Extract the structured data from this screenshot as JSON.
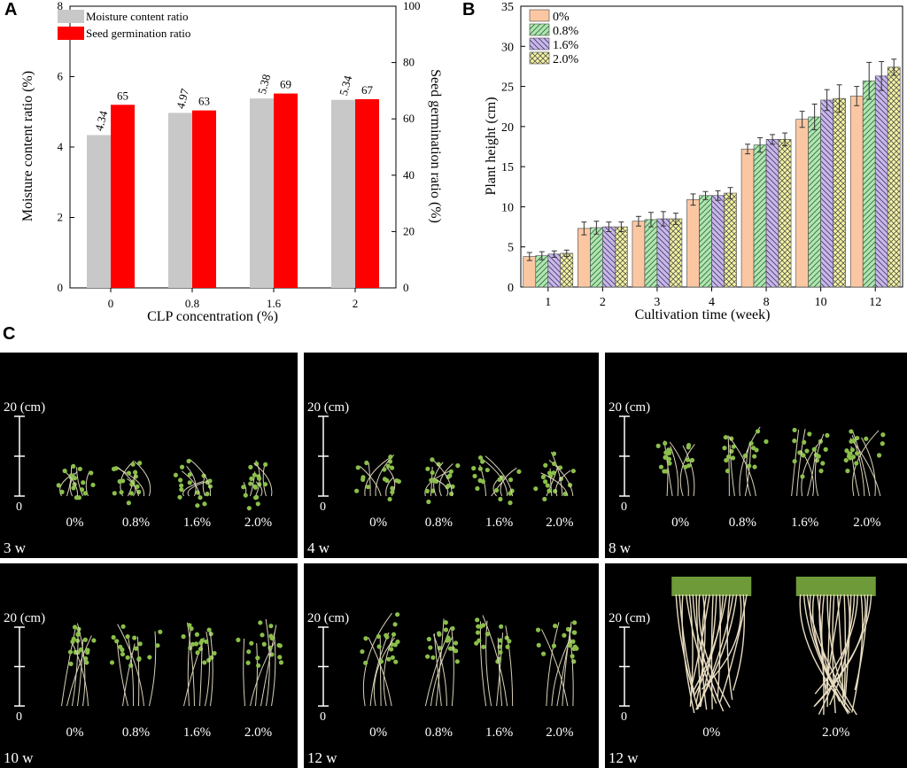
{
  "panels": {
    "a": "A",
    "b": "B",
    "c": "C"
  },
  "chart_data": [
    {
      "type": "bar",
      "title": "",
      "categories": [
        "0",
        "0.8",
        "1.6",
        "2"
      ],
      "xlabel": "CLP concentration (%)",
      "ylabel": "Moisture content ratio (%)",
      "y2label": "Seed germination ratio (%)",
      "ylim": [
        0,
        8
      ],
      "y2lim": [
        0,
        100
      ],
      "yticks": [
        0,
        2,
        4,
        6,
        8
      ],
      "y2ticks": [
        0,
        20,
        40,
        60,
        80,
        100
      ],
      "legend_position": "top-left",
      "series": [
        {
          "name": "Moisture content ratio",
          "axis": "left",
          "color": "#c8c8c8",
          "values": [
            4.34,
            4.97,
            5.38,
            5.34
          ],
          "labels": [
            "4.34",
            "4.97",
            "5.38",
            "5.34"
          ]
        },
        {
          "name": "Seed germination ratio",
          "axis": "right",
          "color": "#ff0000",
          "values": [
            65,
            63,
            69,
            67
          ],
          "labels": [
            "65",
            "63",
            "69",
            "67"
          ]
        }
      ]
    },
    {
      "type": "bar",
      "title": "",
      "categories": [
        "1",
        "2",
        "3",
        "4",
        "8",
        "10",
        "12"
      ],
      "xlabel": "Cultivation time (week)",
      "ylabel": "Plant height (cm)",
      "ylim": [
        0,
        35
      ],
      "yticks": [
        0,
        5,
        10,
        15,
        20,
        25,
        30,
        35
      ],
      "legend_position": "top-left",
      "series": [
        {
          "name": "0%",
          "color": "#fbc7a2",
          "pattern": "none",
          "values": [
            3.8,
            7.3,
            8.2,
            10.9,
            17.2,
            20.9,
            23.8
          ],
          "errors": [
            0.5,
            0.8,
            0.6,
            0.7,
            0.6,
            1.0,
            1.2
          ]
        },
        {
          "name": "0.8%",
          "color": "#b7e2b3",
          "pattern": "diag-left",
          "values": [
            3.9,
            7.4,
            8.4,
            11.4,
            17.7,
            21.2,
            25.7
          ],
          "errors": [
            0.5,
            0.8,
            0.9,
            0.5,
            0.9,
            1.6,
            2.3
          ]
        },
        {
          "name": "1.6%",
          "color": "#c8b9e6",
          "pattern": "diag-right",
          "values": [
            4.1,
            7.5,
            8.5,
            11.4,
            18.4,
            23.3,
            26.3
          ],
          "errors": [
            0.4,
            0.6,
            0.9,
            0.6,
            0.6,
            1.3,
            1.8
          ]
        },
        {
          "name": "2.0%",
          "color": "#f6f5a0",
          "pattern": "cross",
          "values": [
            4.2,
            7.5,
            8.5,
            11.7,
            18.4,
            23.5,
            27.4
          ],
          "errors": [
            0.4,
            0.6,
            0.7,
            0.7,
            0.8,
            1.7,
            1.0
          ]
        }
      ]
    }
  ],
  "photos": [
    {
      "week": "3 w",
      "scale_label": "20 (cm)",
      "zero": "0",
      "groups": [
        "0%",
        "0.8%",
        "1.6%",
        "2.0%"
      ]
    },
    {
      "week": "4 w",
      "scale_label": "20 (cm)",
      "zero": "0",
      "groups": [
        "0%",
        "0.8%",
        "1.6%",
        "2.0%"
      ]
    },
    {
      "week": "8 w",
      "scale_label": "20 (cm)",
      "zero": "0",
      "groups": [
        "0%",
        "0.8%",
        "1.6%",
        "2.0%"
      ]
    },
    {
      "week": "10 w",
      "scale_label": "20 (cm)",
      "zero": "0",
      "groups": [
        "0%",
        "0.8%",
        "1.6%",
        "2.0%"
      ]
    },
    {
      "week": "12 w",
      "scale_label": "20 (cm)",
      "zero": "0",
      "groups": [
        "0%",
        "0.8%",
        "1.6%",
        "2.0%"
      ]
    },
    {
      "week": "12 w",
      "scale_label": "20 (cm)",
      "zero": "0",
      "groups": [
        "0%",
        "2.0%"
      ]
    }
  ]
}
